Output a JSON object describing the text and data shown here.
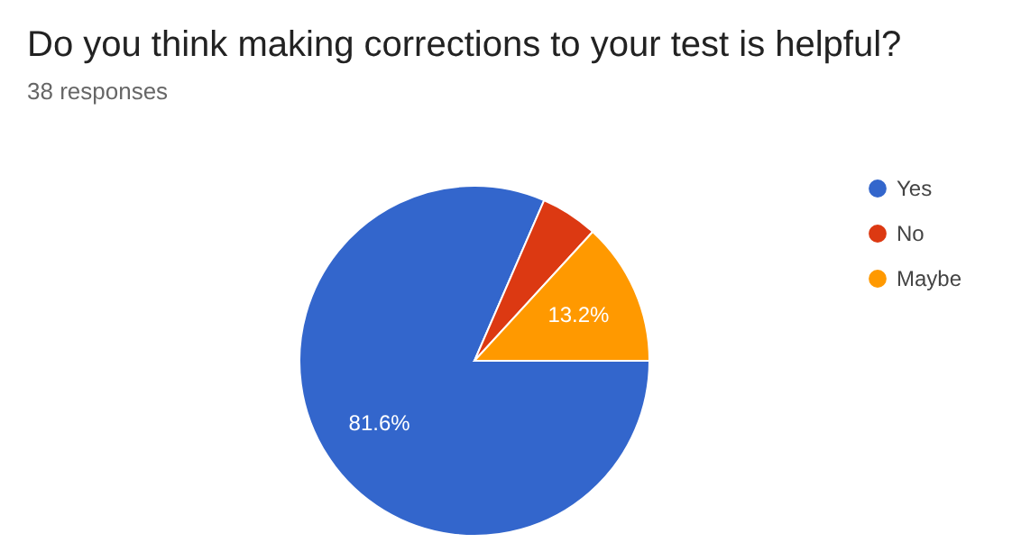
{
  "chart_data": {
    "type": "pie",
    "title": "Do you think making corrections to your test is helpful?",
    "subtitle": "38 responses",
    "categories": [
      "Yes",
      "No",
      "Maybe"
    ],
    "values": [
      81.6,
      5.3,
      13.2
    ],
    "colors": [
      "#3366cc",
      "#dc3912",
      "#ff9900"
    ],
    "value_labels": [
      "81.6%",
      null,
      "13.2%"
    ],
    "legend": "top right"
  }
}
